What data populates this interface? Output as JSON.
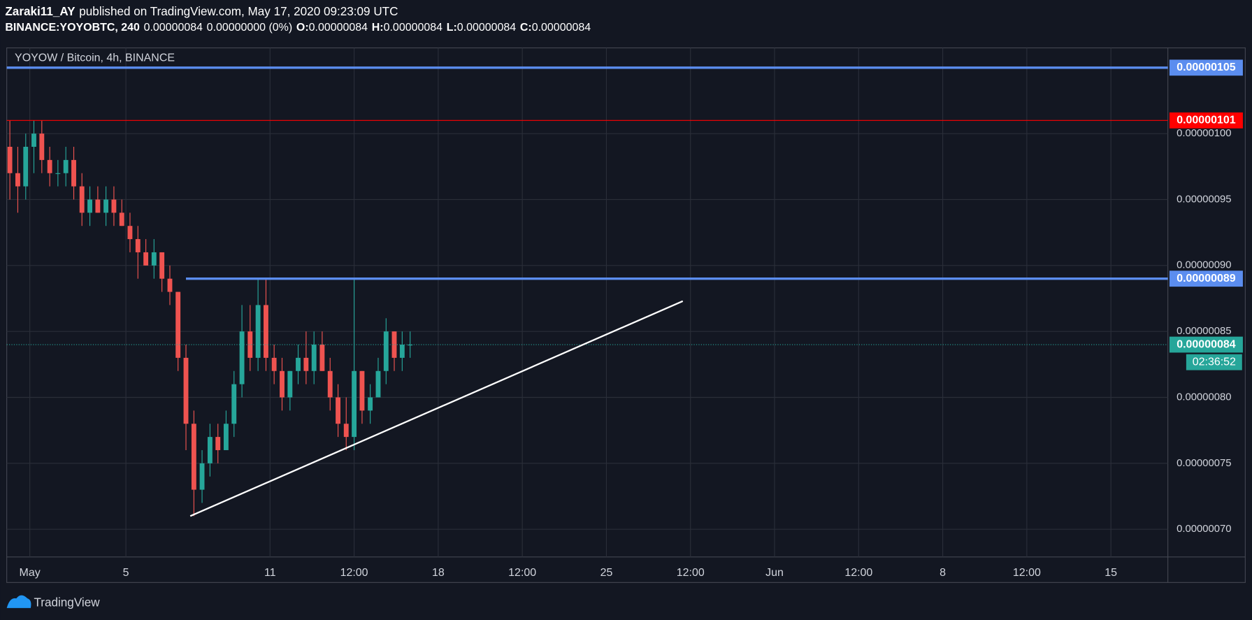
{
  "header": {
    "author": "Zaraki11_AY",
    "published": "published on TradingView.com, May 17, 2020 09:23:09 UTC",
    "symbol": "BINANCE:YOYOBTC, 240",
    "price": "0.00000084",
    "change": "0.00000000 (0%)",
    "ohlc": [
      {
        "label": "O:",
        "value": "0.00000084"
      },
      {
        "label": "H:",
        "value": "0.00000084"
      },
      {
        "label": "L:",
        "value": "0.00000084"
      },
      {
        "label": "C:",
        "value": "0.00000084"
      }
    ]
  },
  "footer": {
    "brand": "TradingView"
  },
  "chart_data": {
    "type": "candlestick",
    "title": "YOYOW / Bitcoin, 4h, BINANCE",
    "up_color": "#26a69a",
    "down_color": "#ef5350",
    "grid": true,
    "x": [
      0.17,
      0.5,
      0.83,
      1.17,
      1.5,
      1.83,
      2.17,
      2.5,
      2.83,
      3.17,
      3.5,
      3.83,
      4.17,
      4.5,
      4.83,
      5.17,
      5.5,
      5.83,
      6.17,
      6.5,
      6.83,
      7.17,
      7.5,
      7.83,
      8.17,
      8.5,
      8.83,
      9.17,
      9.5,
      9.83,
      10.17,
      10.5,
      10.83,
      11.17,
      11.5,
      11.83,
      12.17,
      12.5,
      12.83,
      13.17,
      13.5,
      13.83,
      14.17,
      14.5,
      14.83,
      15.17,
      15.5,
      15.83,
      16.17,
      16.5,
      16.83
    ],
    "open": [
      9.9e-07,
      9.7e-07,
      9.6e-07,
      9.9e-07,
      1e-06,
      9.8e-07,
      9.7e-07,
      9.7e-07,
      9.8e-07,
      9.6e-07,
      9.4e-07,
      9.5e-07,
      9.4e-07,
      9.5e-07,
      9.4e-07,
      9.3e-07,
      9.2e-07,
      9.1e-07,
      9e-07,
      9.1e-07,
      8.9e-07,
      8.8e-07,
      8.3e-07,
      7.8e-07,
      7.3e-07,
      7.5e-07,
      7.7e-07,
      7.6e-07,
      7.8e-07,
      8.1e-07,
      8.5e-07,
      8.3e-07,
      8.7e-07,
      8.3e-07,
      8.2e-07,
      8e-07,
      8.2e-07,
      8.3e-07,
      8.2e-07,
      8.4e-07,
      8.2e-07,
      8e-07,
      7.8e-07,
      7.7e-07,
      8.2e-07,
      7.9e-07,
      8e-07,
      8.2e-07,
      8.5e-07,
      8.3e-07,
      8.4e-07
    ],
    "high": [
      1.01e-06,
      9.9e-07,
      1e-06,
      1.01e-06,
      1.01e-06,
      9.9e-07,
      9.8e-07,
      9.9e-07,
      9.9e-07,
      9.7e-07,
      9.6e-07,
      9.6e-07,
      9.6e-07,
      9.6e-07,
      9.5e-07,
      9.4e-07,
      9.3e-07,
      9.2e-07,
      9.2e-07,
      9.1e-07,
      9e-07,
      8.8e-07,
      8.4e-07,
      7.9e-07,
      7.6e-07,
      7.8e-07,
      7.8e-07,
      7.9e-07,
      8.2e-07,
      8.7e-07,
      8.7e-07,
      8.9e-07,
      8.9e-07,
      8.4e-07,
      8.3e-07,
      8.2e-07,
      8.4e-07,
      8.5e-07,
      8.5e-07,
      8.5e-07,
      8.3e-07,
      8.1e-07,
      8e-07,
      8.9e-07,
      8.2e-07,
      8.1e-07,
      8.3e-07,
      8.6e-07,
      8.5e-07,
      8.5e-07,
      8.5e-07
    ],
    "low": [
      9.5e-07,
      9.4e-07,
      9.5e-07,
      9.7e-07,
      9.7e-07,
      9.6e-07,
      9.6e-07,
      9.6e-07,
      9.5e-07,
      9.3e-07,
      9.3e-07,
      9.4e-07,
      9.3e-07,
      9.3e-07,
      9.3e-07,
      9.1e-07,
      8.9e-07,
      9e-07,
      8.9e-07,
      8.8e-07,
      8.7e-07,
      8.2e-07,
      7.6e-07,
      7.1e-07,
      7.2e-07,
      7.4e-07,
      7.5e-07,
      7.6e-07,
      7.7e-07,
      8e-07,
      8.2e-07,
      8.2e-07,
      8.2e-07,
      8.1e-07,
      7.9e-07,
      7.9e-07,
      8.1e-07,
      8.1e-07,
      8.1e-07,
      8.2e-07,
      7.9e-07,
      7.7e-07,
      7.6e-07,
      7.6e-07,
      7.8e-07,
      7.8e-07,
      8e-07,
      8.1e-07,
      8.2e-07,
      8.2e-07,
      8.3e-07
    ],
    "close": [
      9.7e-07,
      9.6e-07,
      9.9e-07,
      1e-06,
      9.8e-07,
      9.7e-07,
      9.7e-07,
      9.8e-07,
      9.6e-07,
      9.4e-07,
      9.5e-07,
      9.4e-07,
      9.5e-07,
      9.4e-07,
      9.3e-07,
      9.2e-07,
      9.1e-07,
      9e-07,
      9.1e-07,
      8.9e-07,
      8.8e-07,
      8.3e-07,
      7.8e-07,
      7.3e-07,
      7.5e-07,
      7.7e-07,
      7.6e-07,
      7.8e-07,
      8.1e-07,
      8.5e-07,
      8.3e-07,
      8.7e-07,
      8.3e-07,
      8.2e-07,
      8e-07,
      8.2e-07,
      8.3e-07,
      8.2e-07,
      8.4e-07,
      8.2e-07,
      8e-07,
      7.8e-07,
      7.7e-07,
      8.2e-07,
      7.9e-07,
      8e-07,
      8.2e-07,
      8.5e-07,
      8.3e-07,
      8.4e-07,
      8.4e-07
    ],
    "xlim": [
      0.04,
      48.37
    ],
    "xticks": [
      {
        "value": 1,
        "label": "May"
      },
      5,
      11,
      {
        "value": 14.5,
        "label": "12:00"
      },
      18,
      {
        "value": 21.5,
        "label": "12:00"
      },
      25,
      {
        "value": 28.5,
        "label": "12:00"
      },
      {
        "value": 32,
        "label": "Jun"
      },
      {
        "value": 35.5,
        "label": "12:00"
      },
      {
        "value": 39,
        "label": "8"
      },
      {
        "value": 42.5,
        "label": "12:00"
      },
      {
        "value": 46,
        "label": "15"
      }
    ],
    "ylim": [
      6.79e-07,
      1.065e-06
    ],
    "yticks": [
      {
        "value": 7e-07,
        "label": "0.00000070"
      },
      {
        "value": 7.5e-07,
        "label": "0.00000075"
      },
      {
        "value": 8e-07,
        "label": "0.00000080"
      },
      {
        "value": 8.5e-07,
        "label": "0.00000085"
      },
      {
        "value": 9e-07,
        "label": "0.00000090"
      },
      {
        "value": 9.5e-07,
        "label": "0.00000095"
      },
      {
        "value": 1e-06,
        "label": "0.00000100"
      }
    ],
    "levels": [
      {
        "value": 1.05e-06,
        "label": "0.00000105",
        "color": "#5b8def",
        "width": 3,
        "style": "solid"
      },
      {
        "value": 1.01e-06,
        "label": "0.00000101",
        "color": "#ff0000",
        "width": 1,
        "style": "solid"
      },
      {
        "value": 8.9e-07,
        "label": "0.00000089",
        "color": "#5b8def",
        "width": 3,
        "style": "solid",
        "start": 7.5
      },
      {
        "value": 8.4e-07,
        "label": "0.00000084",
        "color": "#26a69a",
        "width": 1,
        "style": "dotted",
        "countdown": "02:36:52"
      }
    ],
    "trendline": {
      "x": [
        7.68,
        28.18
      ],
      "y": [
        7.1e-07,
        8.73e-07
      ],
      "color": "#ffffff"
    }
  }
}
